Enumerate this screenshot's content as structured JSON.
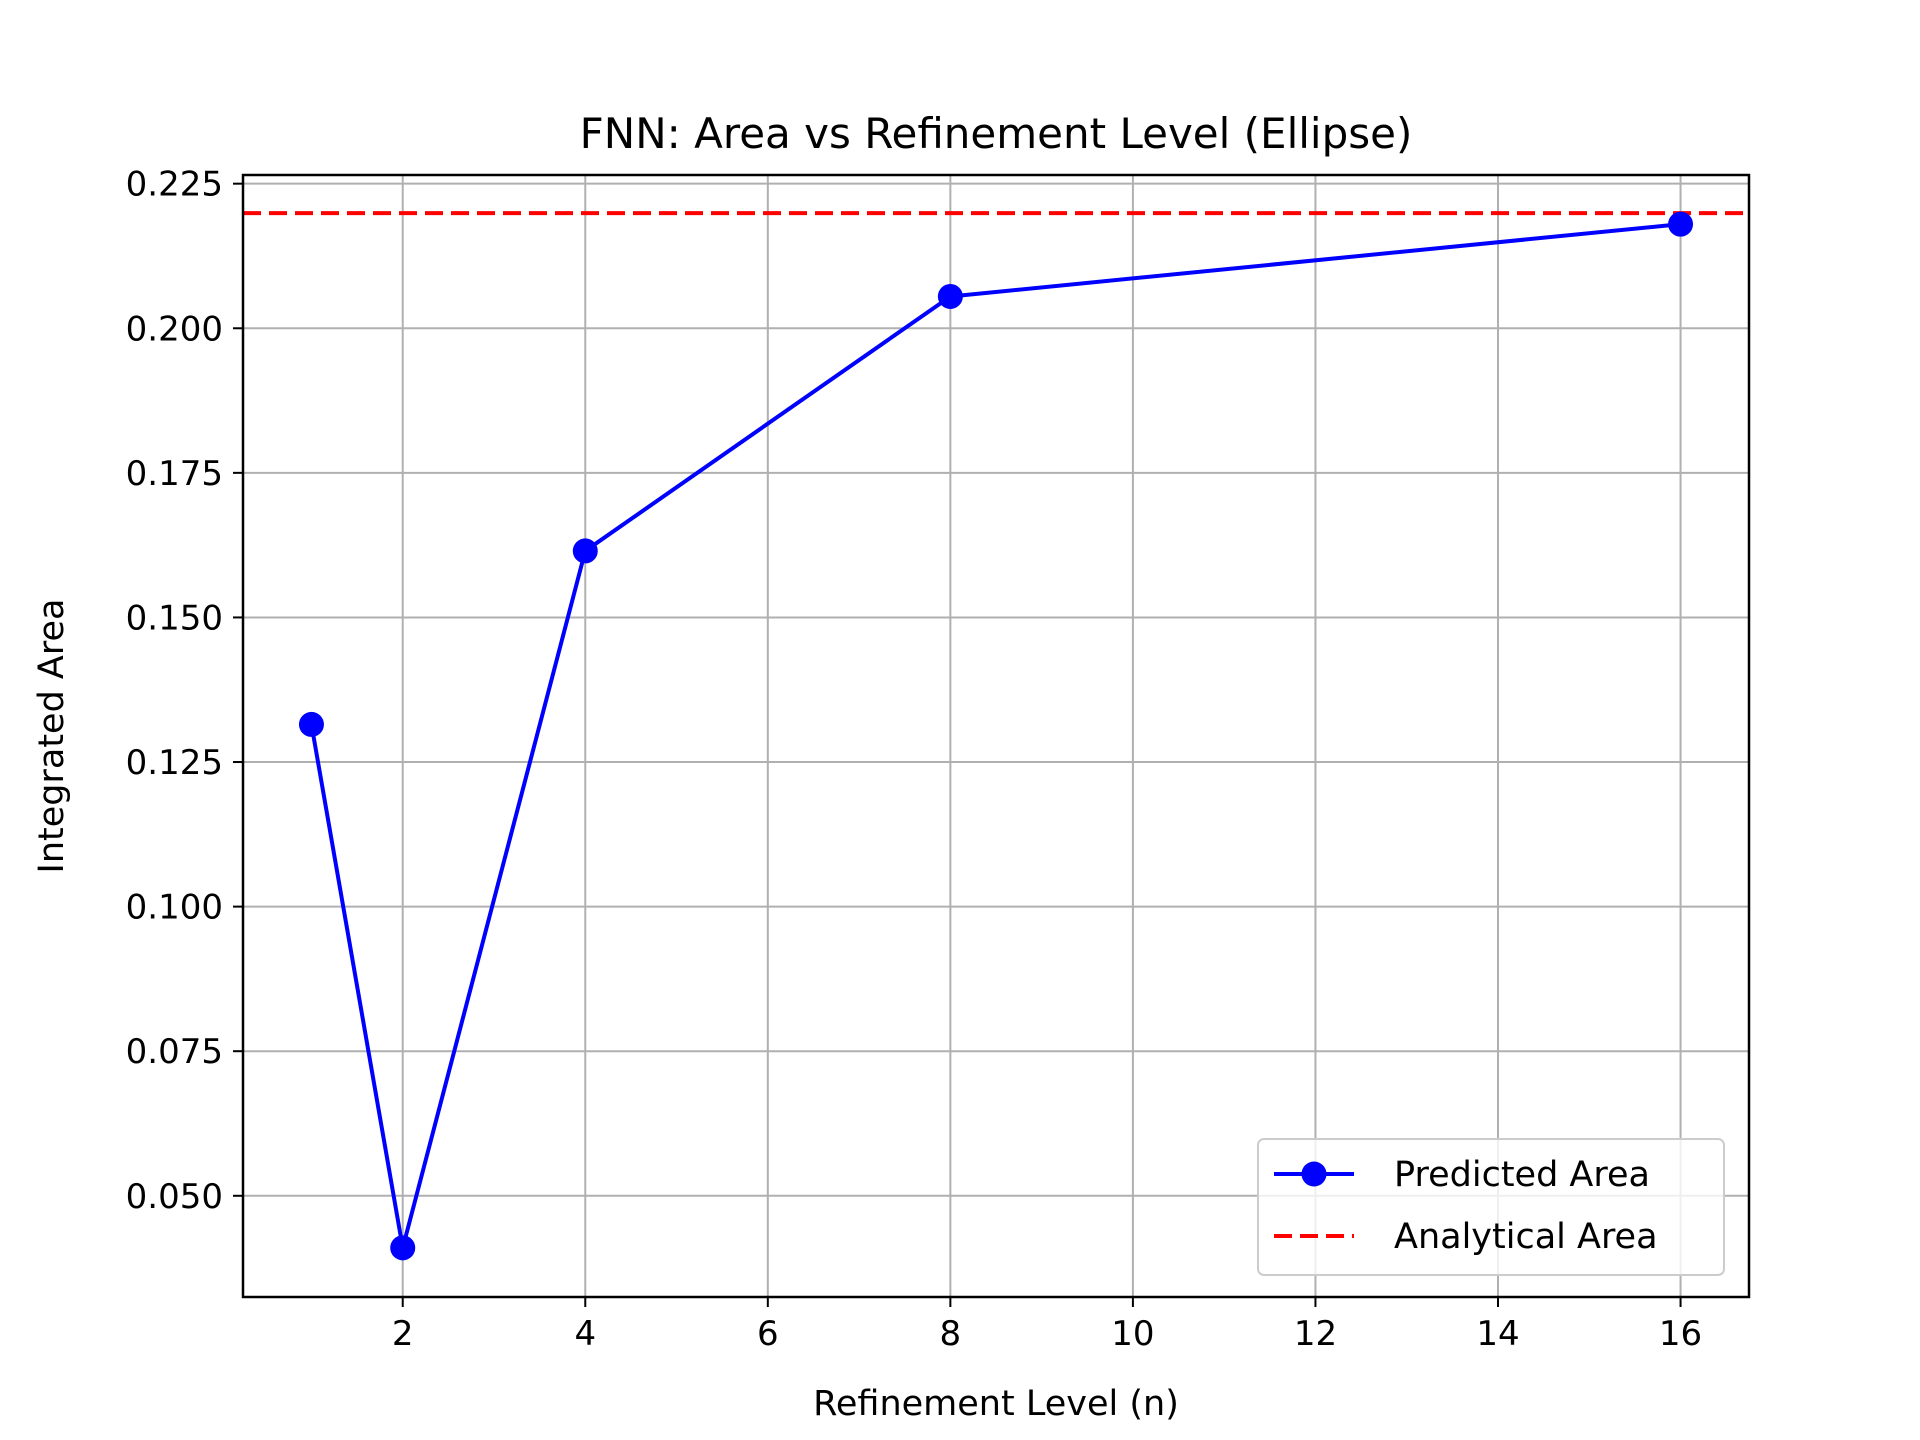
{
  "chart_data": {
    "type": "line",
    "title": "FNN: Area vs Refinement Level (Ellipse)",
    "xlabel": "Refinement Level (n)",
    "ylabel": "Integrated Area",
    "xlim": [
      0.25,
      16.75
    ],
    "ylim": [
      0.0325,
      0.2265
    ],
    "xticks": [
      2,
      4,
      6,
      8,
      10,
      12,
      14,
      16
    ],
    "xtick_labels": [
      "2",
      "4",
      "6",
      "8",
      "10",
      "12",
      "14",
      "16"
    ],
    "yticks": [
      0.05,
      0.075,
      0.1,
      0.125,
      0.15,
      0.175,
      0.2,
      0.225
    ],
    "ytick_labels": [
      "0.050",
      "0.075",
      "0.100",
      "0.125",
      "0.150",
      "0.175",
      "0.200",
      "0.225"
    ],
    "grid": true,
    "legend_position": "lower-right",
    "series": [
      {
        "name": "Predicted Area",
        "style": "solid-line-with-circle-markers",
        "color": "#0000ff",
        "x": [
          1,
          2,
          4,
          8,
          16
        ],
        "y": [
          0.1315,
          0.041,
          0.1615,
          0.2055,
          0.218
        ]
      },
      {
        "name": "Analytical Area",
        "style": "dashed-horizontal-line",
        "color": "#ff0000",
        "y": 0.2199
      }
    ]
  }
}
